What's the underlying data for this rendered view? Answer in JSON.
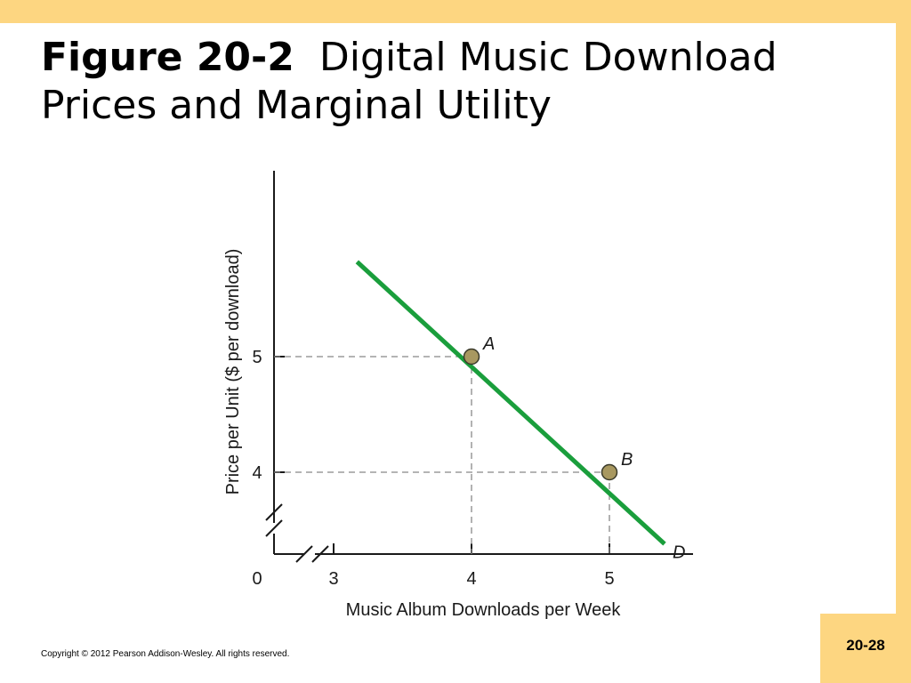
{
  "slide": {
    "title_label": "Figure 20-2",
    "title_text": "Digital Music Download Prices and Marginal Utility",
    "copyright": "Copyright © 2012 Pearson Addison-Wesley. All rights reserved.",
    "page_number": "20-28"
  },
  "colors": {
    "frame": "#fdd681",
    "demand_line": "#1a9e3c",
    "guide": "#888888",
    "point_fill": "#a89860"
  },
  "chart_data": {
    "type": "line",
    "title": "",
    "xlabel": "Music Album Downloads per Week",
    "ylabel": "Price per Unit ($ per download)",
    "origin_label": "0",
    "x_ticks": [
      3,
      4,
      5
    ],
    "y_ticks": [
      4,
      5
    ],
    "x_axis_broken": true,
    "y_axis_broken": true,
    "xlim": [
      2.6,
      6.0
    ],
    "ylim": [
      3.3,
      6.6
    ],
    "grid": false,
    "series": [
      {
        "name": "D",
        "x": [
          3.17,
          5.4
        ],
        "y": [
          5.82,
          3.38
        ]
      }
    ],
    "points": [
      {
        "label": "A",
        "x": 4,
        "y": 5
      },
      {
        "label": "B",
        "x": 5,
        "y": 4
      }
    ]
  }
}
